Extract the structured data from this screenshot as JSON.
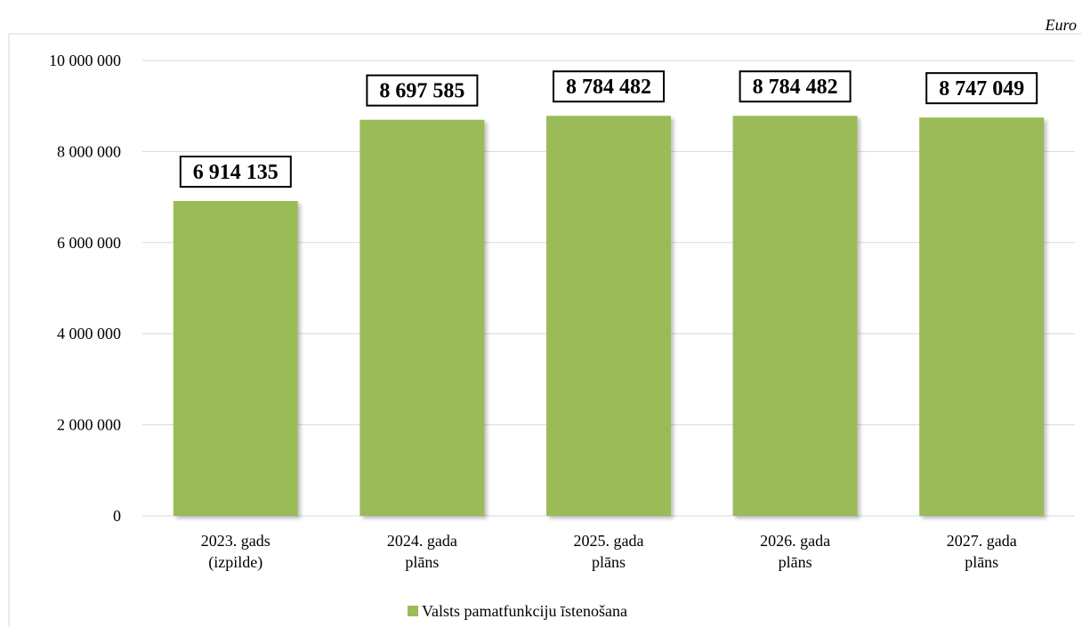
{
  "unit": "Euro",
  "colors": {
    "bar": "#9BBB59",
    "grid": "#D9D9D9",
    "frame": "#D9D9D9"
  },
  "chart_data": {
    "type": "bar",
    "title": "",
    "xlabel": "",
    "ylabel": "",
    "ylim": [
      0,
      10000000
    ],
    "yticks": [
      0,
      2000000,
      4000000,
      6000000,
      8000000,
      10000000
    ],
    "ytick_labels": [
      "0",
      "2 000 000",
      "4 000 000",
      "6 000 000",
      "8 000 000",
      "10 000 000"
    ],
    "categories": [
      [
        "2023. gads",
        "(izpilde)"
      ],
      [
        "2024. gada",
        "plāns"
      ],
      [
        "2025. gada",
        "plāns"
      ],
      [
        "2026. gada",
        "plāns"
      ],
      [
        "2027. gada",
        "plāns"
      ]
    ],
    "series": [
      {
        "name": "Valsts pamatfunkciju īstenošana",
        "values": [
          6914135,
          8697585,
          8784482,
          8784482,
          8747049
        ],
        "labels": [
          "6 914 135",
          "8 697 585",
          "8 784 482",
          "8 784 482",
          "8 747 049"
        ]
      }
    ],
    "grid": true,
    "legend": "bottom-center"
  }
}
